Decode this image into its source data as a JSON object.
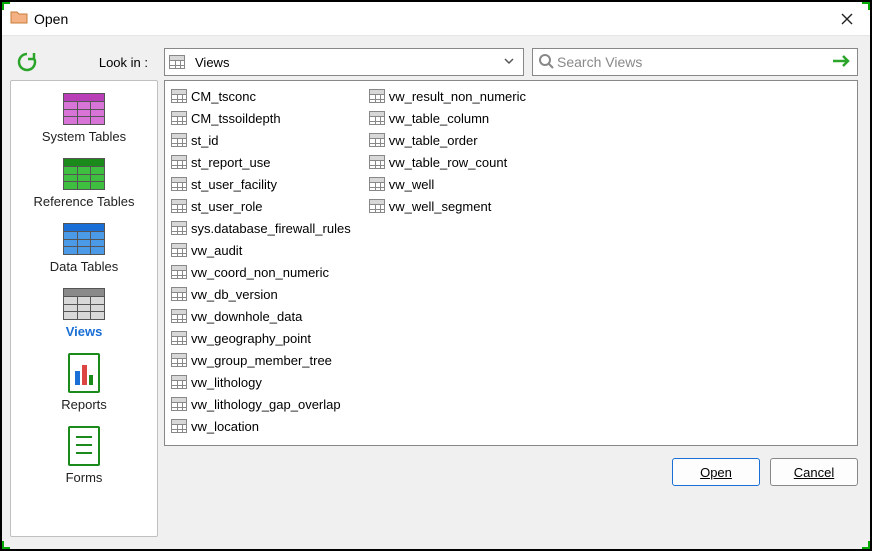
{
  "window": {
    "title": "Open"
  },
  "toolbar": {
    "lookin_label": "Look in :",
    "dropdown_value": "Views",
    "search_placeholder": "Search Views"
  },
  "sidebar": {
    "items": [
      {
        "label": "System Tables",
        "hdr_color": "#b93fb9",
        "body_color": "#d874d8"
      },
      {
        "label": "Reference Tables",
        "hdr_color": "#1a8a1a",
        "body_color": "#3fbf3f"
      },
      {
        "label": "Data Tables",
        "hdr_color": "#1a6fd6",
        "body_color": "#4a9ae8"
      },
      {
        "label": "Views",
        "hdr_color": "#8a8a8a",
        "body_color": "#d8d8d8",
        "active": true
      },
      {
        "label": "Reports",
        "type": "report"
      },
      {
        "label": "Forms",
        "type": "form"
      }
    ]
  },
  "files": [
    "CM_tsconc",
    "CM_tssoildepth",
    "st_id",
    "st_report_use",
    "st_user_facility",
    "st_user_role",
    "sys.database_firewall_rules",
    "vw_audit",
    "vw_coord_non_numeric",
    "vw_db_version",
    "vw_downhole_data",
    "vw_geography_point",
    "vw_group_member_tree",
    "vw_lithology",
    "vw_lithology_gap_overlap",
    "vw_location",
    "vw_result_non_numeric",
    "vw_table_column",
    "vw_table_order",
    "vw_table_row_count",
    "vw_well",
    "vw_well_segment"
  ],
  "buttons": {
    "open": "Open",
    "cancel": "Cancel"
  }
}
